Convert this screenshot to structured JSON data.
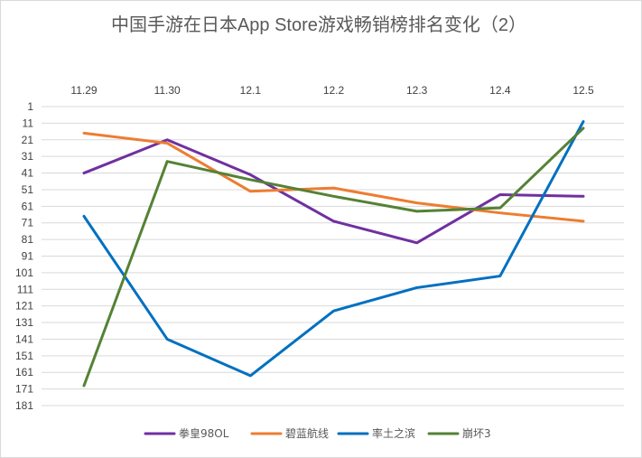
{
  "chart_data": {
    "type": "line",
    "title": "中国手游在日本App Store游戏畅销榜排名变化（2）",
    "categories": [
      "11.29",
      "11.30",
      "12.1",
      "12.2",
      "12.3",
      "12.4",
      "12.5"
    ],
    "y_ticks": [
      1,
      11,
      21,
      31,
      41,
      51,
      61,
      71,
      81,
      91,
      101,
      111,
      121,
      131,
      141,
      151,
      161,
      171,
      181
    ],
    "ylim": [
      1,
      181
    ],
    "y_reversed": true,
    "x_axis_position": "top",
    "grid": true,
    "legend_position": "bottom",
    "series": [
      {
        "name": "拳皇98OL",
        "color": "#7030a0",
        "values": [
          41,
          21,
          42,
          70,
          83,
          54,
          55
        ]
      },
      {
        "name": "碧蓝航线",
        "color": "#ed7d31",
        "values": [
          17,
          23,
          52,
          50,
          59,
          65,
          70
        ]
      },
      {
        "name": "率土之滨",
        "color": "#0070c0",
        "values": [
          67,
          141,
          163,
          124,
          110,
          103,
          10
        ]
      },
      {
        "name": "崩坏3",
        "color": "#548235",
        "values": [
          169,
          34,
          45,
          55,
          64,
          62,
          14
        ]
      }
    ]
  }
}
